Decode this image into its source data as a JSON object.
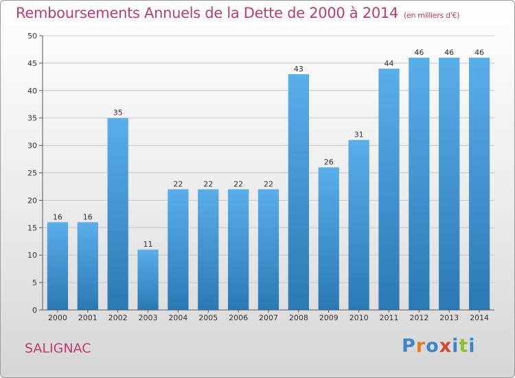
{
  "header": {
    "title": "Remboursements Annuels de la Dette de 2000 à 2014",
    "unit": "(en milliers d'€)"
  },
  "footer": {
    "commune": "SALIGNAC",
    "brand": "Proxiti"
  },
  "colors": {
    "title": "#c0396f",
    "bar_top": "#5aaee9",
    "bar_bottom": "#2a79b5",
    "grid": "#c8c8c8",
    "axis": "#555555"
  },
  "chart_data": {
    "type": "bar",
    "title": "Remboursements Annuels de la Dette de 2000 à 2014",
    "categories": [
      "2000",
      "2001",
      "2002",
      "2003",
      "2004",
      "2005",
      "2006",
      "2007",
      "2008",
      "2009",
      "2010",
      "2011",
      "2012",
      "2013",
      "2014"
    ],
    "values": [
      16,
      16,
      35,
      11,
      22,
      22,
      22,
      22,
      43,
      26,
      31,
      44,
      46,
      46,
      46
    ],
    "ylim": [
      0,
      50
    ],
    "yticks": [
      0,
      5,
      10,
      15,
      20,
      25,
      30,
      35,
      40,
      45,
      50
    ],
    "grid": true,
    "data_labels": true
  }
}
